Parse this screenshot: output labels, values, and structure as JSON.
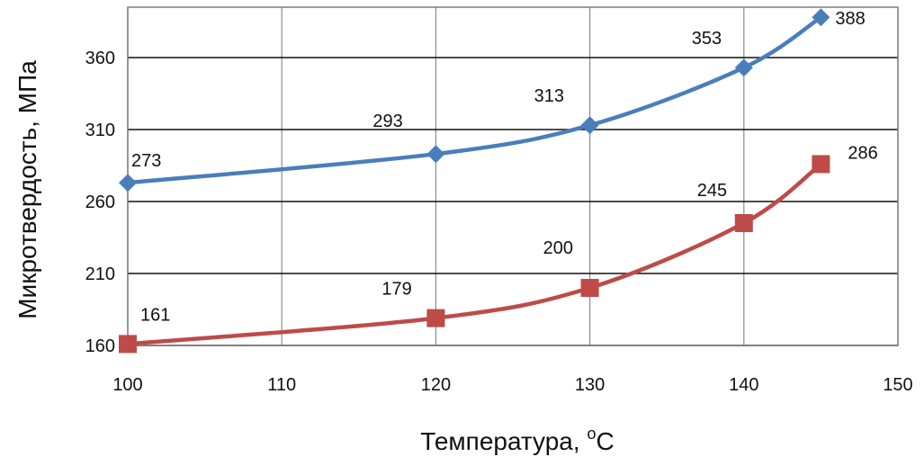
{
  "chart_data": {
    "type": "line",
    "xlabel": "Температура, ",
    "xlabel_unit_sup": "o",
    "xlabel_unit": "C",
    "ylabel": "Микротвердость, МПа",
    "xlim": [
      100,
      150
    ],
    "ylim": [
      160,
      395
    ],
    "x_ticks": [
      "100",
      "110",
      "120",
      "130",
      "140",
      "150"
    ],
    "y_ticks": [
      "160",
      "210",
      "260",
      "310",
      "360"
    ],
    "grid": true,
    "series": [
      {
        "color": "#4a7ebb",
        "marker": "diamond",
        "x": [
          100,
          120,
          130,
          140,
          145
        ],
        "y": [
          273,
          293,
          313,
          353,
          388
        ],
        "labels": [
          "273",
          "293",
          "313",
          "353",
          "388"
        ]
      },
      {
        "color": "#be4b48",
        "marker": "square",
        "x": [
          100,
          120,
          130,
          140,
          145
        ],
        "y": [
          161,
          179,
          200,
          245,
          286
        ],
        "labels": [
          "161",
          "179",
          "200",
          "245",
          "286"
        ]
      }
    ]
  }
}
